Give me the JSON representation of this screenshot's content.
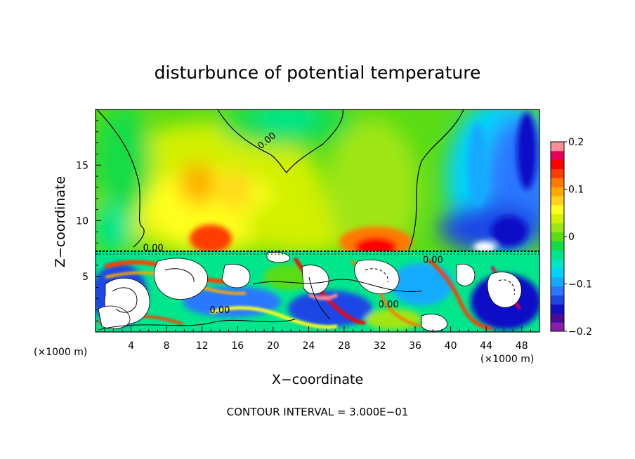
{
  "chart_data": {
    "type": "heatmap",
    "title": "disturbunce of potential temperature",
    "xlabel": "X−coordinate",
    "ylabel": "Z−coordinate",
    "x_unit": "(×1000 m)",
    "x_unit_right": "(×1000 m)",
    "xlim": [
      0,
      50
    ],
    "ylim": [
      0,
      20
    ],
    "x_ticks": [
      4,
      8,
      12,
      16,
      20,
      24,
      28,
      32,
      36,
      40,
      44,
      48
    ],
    "y_ticks": [
      5,
      10,
      15
    ],
    "colorbar": {
      "range": [
        -0.2,
        0.2
      ],
      "ticks": [
        "0.2",
        "0.1",
        "0",
        "−0.1",
        "−0.2"
      ],
      "tick_values": [
        0.2,
        0.1,
        0,
        -0.1,
        -0.2
      ],
      "colors": [
        "#8a1ea8",
        "#4a0a9a",
        "#1010c8",
        "#1e46e6",
        "#2a78ff",
        "#14aaff",
        "#00d2ff",
        "#00e6c8",
        "#00e68c",
        "#14dc46",
        "#5adc14",
        "#a0e614",
        "#d2f000",
        "#ffff1e",
        "#ffd21e",
        "#ffaa00",
        "#ff7800",
        "#ff3c00",
        "#ff0000",
        "#e6005a",
        "#ff8c96"
      ]
    },
    "contour_labels": [
      {
        "text": "0.00",
        "x": 19.5,
        "z": 17.0
      },
      {
        "text": "0.00",
        "x": 6.5,
        "z": 7.3
      },
      {
        "text": "0.00",
        "x": 38.0,
        "z": 6.2
      },
      {
        "text": "0.00",
        "x": 33.0,
        "z": 2.2
      },
      {
        "text": "0.00",
        "x": 14.0,
        "z": 1.7
      }
    ],
    "footer": "CONTOUR INTERVAL = 3.000E−01"
  }
}
